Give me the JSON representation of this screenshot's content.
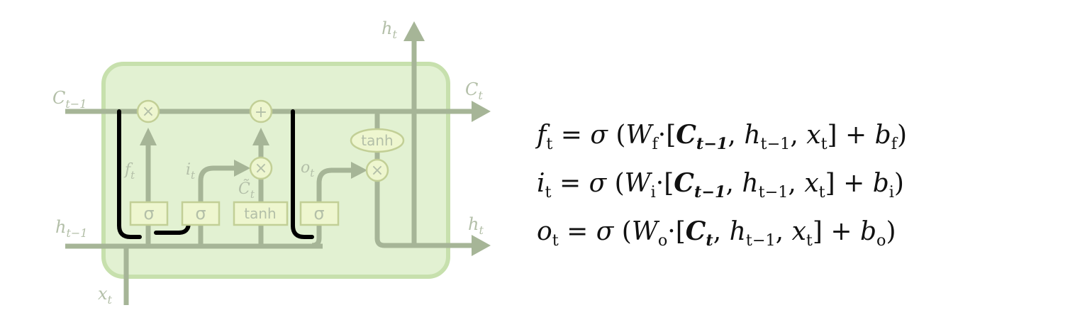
{
  "diagram": {
    "colors": {
      "cell_fill": "#e2f1d2",
      "cell_stroke": "#c7e0ad",
      "line": "#a6b597",
      "gate_fill": "#eef6cf",
      "gate_stroke": "#c2cf96",
      "label": "#b3bfa8",
      "highlight": "#000000"
    },
    "labels": {
      "c_prev": "C",
      "c_prev_sub": "t−1",
      "c_out": "C",
      "c_out_sub": "t",
      "h_prev": "h",
      "h_prev_sub": "t−1",
      "h_top": "h",
      "h_top_sub": "t",
      "h_out": "h",
      "h_out_sub": "t",
      "x_in": "x",
      "x_in_sub": "t",
      "f": "f",
      "f_sub": "t",
      "i": "i",
      "i_sub": "t",
      "ctilde": "C̃",
      "ctilde_sub": "t",
      "o": "o",
      "o_sub": "t"
    },
    "gates": {
      "sigma": "σ",
      "tanh_box": "tanh",
      "tanh_oval": "tanh"
    },
    "ops": {
      "multiply": "×",
      "add": "+"
    }
  },
  "equations": [
    {
      "lhs": "f",
      "lhs_sub": "t",
      "w_sub": "f",
      "c_sub": "t−1",
      "b_sub": "f"
    },
    {
      "lhs": "i",
      "lhs_sub": "t",
      "w_sub": "i",
      "c_sub": "t−1",
      "b_sub": "i"
    },
    {
      "lhs": "o",
      "lhs_sub": "t",
      "w_sub": "o",
      "c_sub": "t",
      "b_sub": "o"
    }
  ],
  "equation_symbols": {
    "equals": "=",
    "sigma": "σ",
    "W": "W",
    "C": "C",
    "h": "h",
    "h_sub": "t−1",
    "x": "x",
    "x_sub": "t",
    "b": "b",
    "plus": "+",
    "dot": "·"
  }
}
